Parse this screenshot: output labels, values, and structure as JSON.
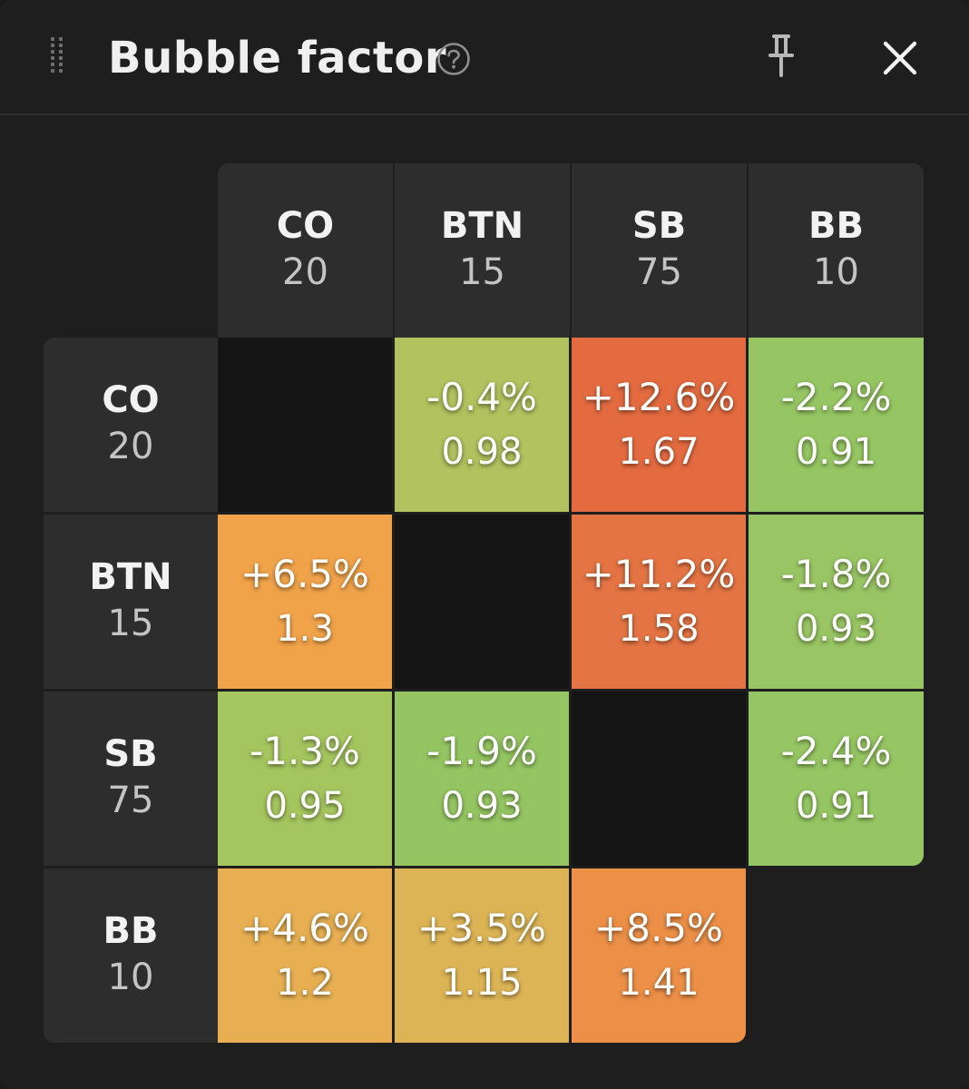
{
  "header": {
    "title": "Bubble factor"
  },
  "columns": [
    {
      "name": "CO",
      "stack": "20"
    },
    {
      "name": "BTN",
      "stack": "15"
    },
    {
      "name": "SB",
      "stack": "75"
    },
    {
      "name": "BB",
      "stack": "10"
    }
  ],
  "rows": [
    {
      "name": "CO",
      "stack": "20"
    },
    {
      "name": "BTN",
      "stack": "15"
    },
    {
      "name": "SB",
      "stack": "75"
    },
    {
      "name": "BB",
      "stack": "10"
    }
  ],
  "cells": [
    [
      {
        "empty": true
      },
      {
        "pct": "-0.4%",
        "factor": "0.98",
        "color": "#b1c25e"
      },
      {
        "pct": "+12.6%",
        "factor": "1.67",
        "color": "#e46b40"
      },
      {
        "pct": "-2.2%",
        "factor": "0.91",
        "color": "#96c663"
      }
    ],
    [
      {
        "pct": "+6.5%",
        "factor": "1.3",
        "color": "#f1a34a"
      },
      {
        "empty": true
      },
      {
        "pct": "+11.2%",
        "factor": "1.58",
        "color": "#e47443"
      },
      {
        "pct": "-1.8%",
        "factor": "0.93",
        "color": "#99c564"
      }
    ],
    [
      {
        "pct": "-1.3%",
        "factor": "0.95",
        "color": "#a5c55f"
      },
      {
        "pct": "-1.9%",
        "factor": "0.93",
        "color": "#95c562"
      },
      {
        "empty": true
      },
      {
        "pct": "-2.4%",
        "factor": "0.91",
        "color": "#96c663"
      }
    ],
    [
      {
        "pct": "+4.6%",
        "factor": "1.2",
        "color": "#e7af52"
      },
      {
        "pct": "+3.5%",
        "factor": "1.15",
        "color": "#dcb455"
      },
      {
        "pct": "+8.5%",
        "factor": "1.41",
        "color": "#ec8f47"
      }
    ]
  ]
}
